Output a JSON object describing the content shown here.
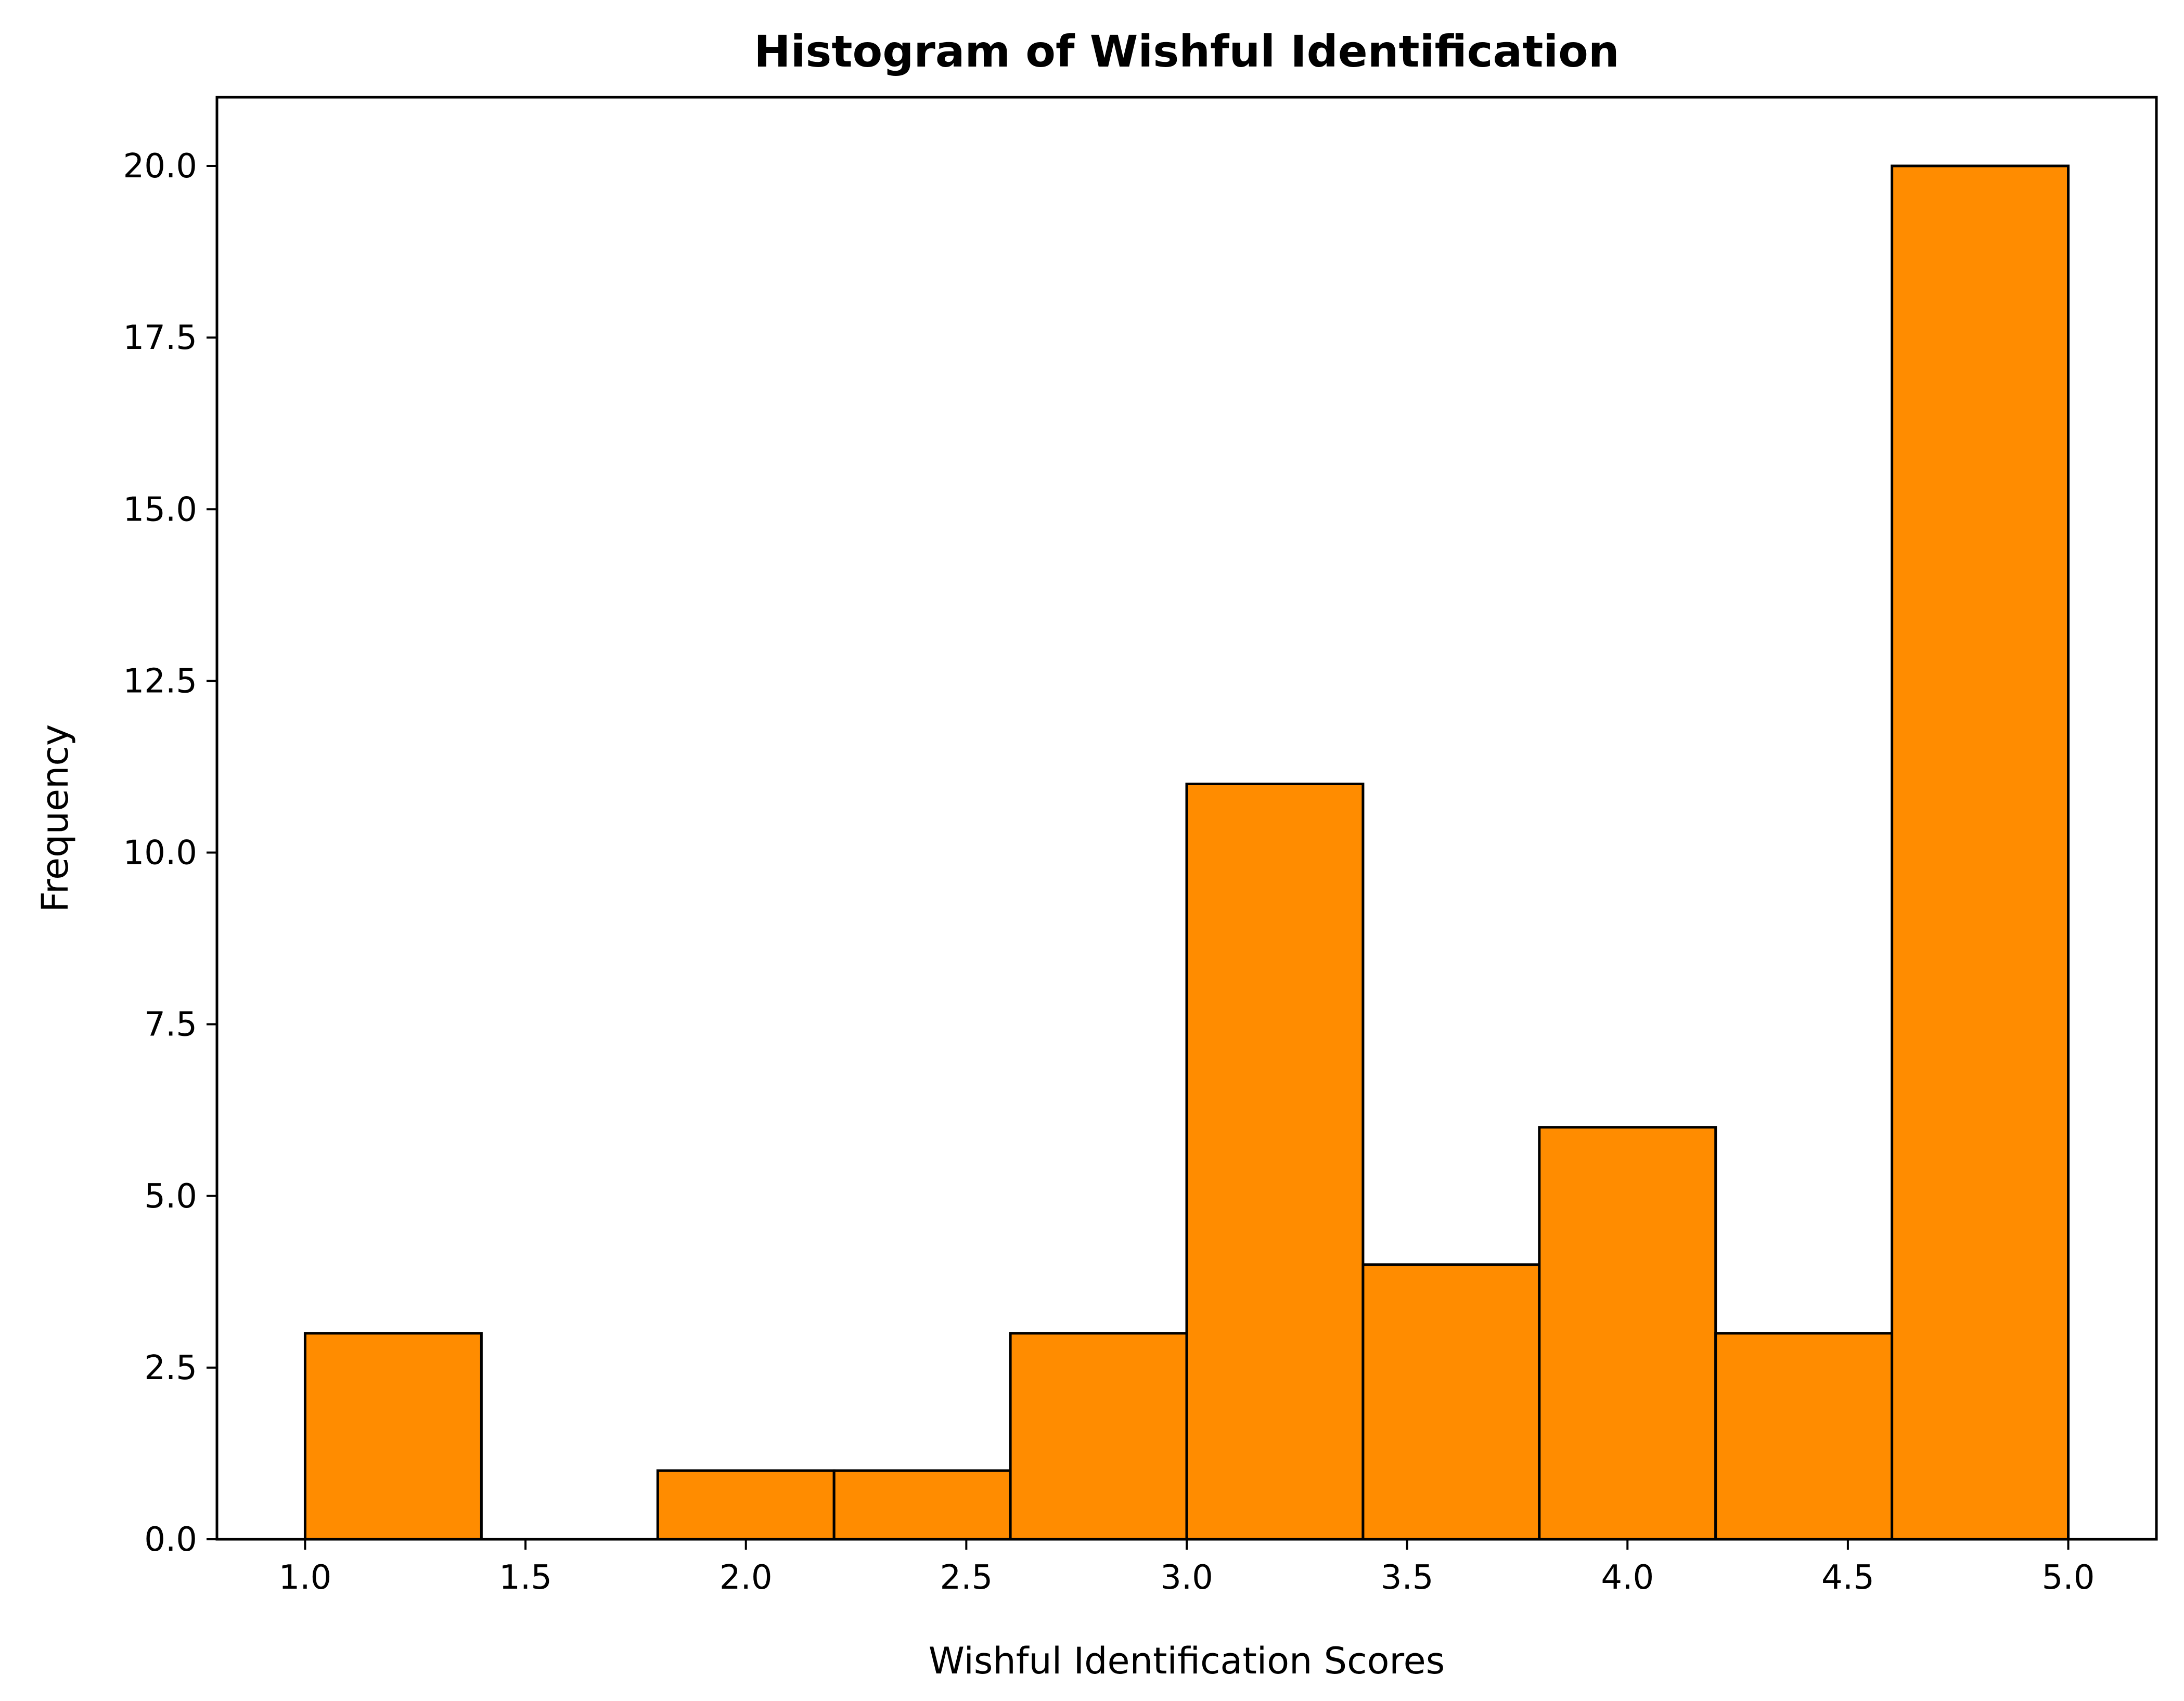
{
  "chart_data": {
    "type": "bar",
    "title": "Histogram of Wishful Identification",
    "xlabel": "Wishful Identification Scores",
    "ylabel": "Frequency",
    "bin_edges": [
      1.0,
      1.4,
      1.8,
      2.2,
      2.6,
      3.0,
      3.4,
      3.8,
      4.2,
      4.6,
      5.0
    ],
    "values": [
      3,
      0,
      1,
      1,
      3,
      11,
      4,
      6,
      3,
      20
    ],
    "xlim": [
      0.8,
      5.2
    ],
    "ylim": [
      0,
      21
    ],
    "xticks": [
      "1.0",
      "1.5",
      "2.0",
      "2.5",
      "3.0",
      "3.5",
      "4.0",
      "4.5",
      "5.0"
    ],
    "yticks": [
      "0.0",
      "2.5",
      "5.0",
      "7.5",
      "10.0",
      "12.5",
      "15.0",
      "17.5",
      "20.0"
    ],
    "bar_color": "#ff8c00",
    "edge_color": "#000000",
    "grid": false
  }
}
